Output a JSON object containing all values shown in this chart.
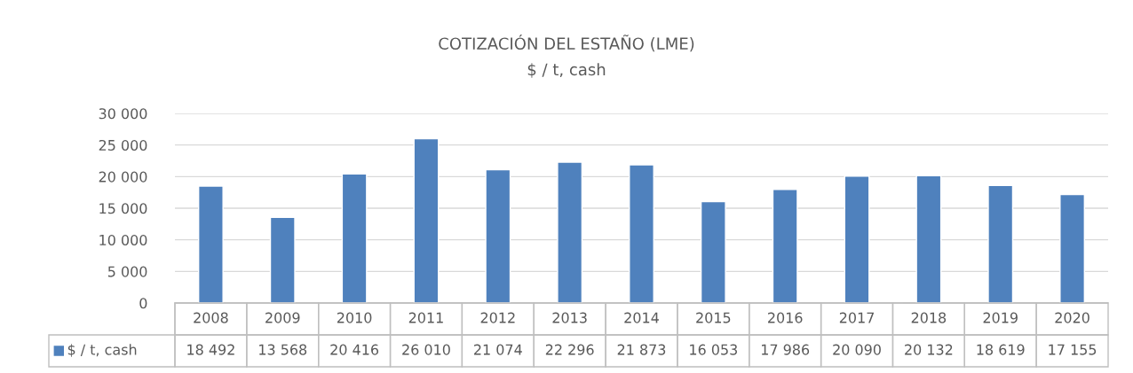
{
  "chart_data": {
    "type": "bar",
    "title": "COTIZACIÓN DEL ESTAÑO (LME)",
    "subtitle": "$ / t, cash",
    "categories": [
      "2008",
      "2009",
      "2010",
      "2011",
      "2012",
      "2013",
      "2014",
      "2015",
      "2016",
      "2017",
      "2018",
      "2019",
      "2020"
    ],
    "series": [
      {
        "name": "$ / t, cash",
        "color": "#4f81bd",
        "values": [
          18492,
          13568,
          20416,
          26010,
          21074,
          22296,
          21873,
          16053,
          17986,
          20090,
          20132,
          18619,
          17155
        ]
      }
    ],
    "ylim": [
      0,
      30000
    ],
    "yticks": [
      0,
      {
        "value": 5000,
        "label": "5 000"
      },
      {
        "value": 10000,
        "label": "10 000"
      },
      {
        "value": 15000,
        "label": "15 000"
      },
      {
        "value": 20000,
        "label": "20 000"
      },
      {
        "value": 25000,
        "label": "25 000"
      },
      {
        "value": 30000,
        "label": "30 000"
      }
    ],
    "grid": "y",
    "legend": "bottom",
    "data_labels": true
  }
}
